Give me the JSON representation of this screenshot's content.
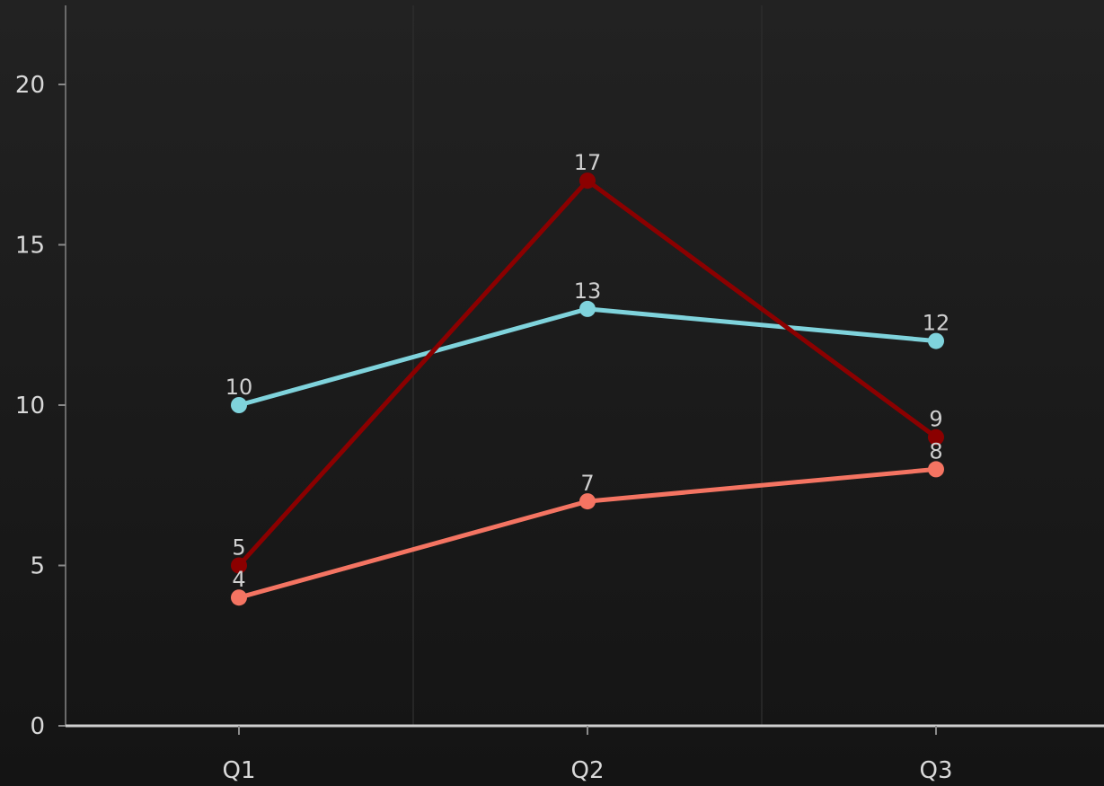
{
  "chart_data": {
    "type": "line",
    "categories": [
      "Q1",
      "Q2",
      "Q3"
    ],
    "ylim": [
      0,
      22
    ],
    "yticks": [
      0,
      5,
      10,
      15,
      20
    ],
    "grid": {
      "vertical": true,
      "horizontal": false
    },
    "show_data_labels": true,
    "series": [
      {
        "values": [
          10,
          13,
          12
        ],
        "color": "#7fd3dc"
      },
      {
        "values": [
          5,
          17,
          9
        ],
        "color": "#8b0000"
      },
      {
        "values": [
          4,
          7,
          8
        ],
        "color": "#f47462"
      }
    ]
  },
  "colors": {
    "background_top": "#222222",
    "background_bottom": "#141414",
    "axis": "#cfcfcf",
    "grid": "#2c2c2c",
    "text": "#d9d9d9"
  }
}
